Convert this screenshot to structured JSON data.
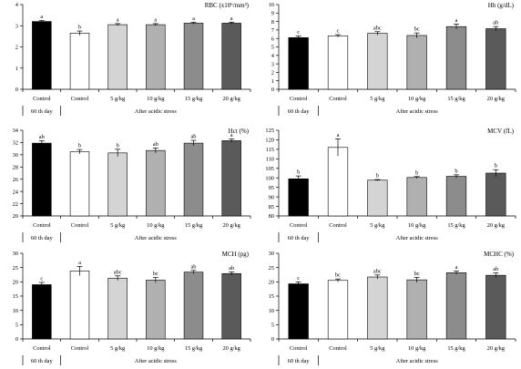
{
  "figure": {
    "group_labels": {
      "baseline": "60 th day",
      "stress": "After acidic stress"
    }
  },
  "chart_data": [
    {
      "type": "bar",
      "title": "RBC (x10⁶/mm³)",
      "categories": [
        "Control",
        "Control",
        "5 g/kg",
        "10 g/kg",
        "15 g/kg",
        "20 g/kg"
      ],
      "values": [
        3.2,
        2.65,
        3.05,
        3.05,
        3.12,
        3.12
      ],
      "errors": [
        0.05,
        0.1,
        0.05,
        0.05,
        0.05,
        0.05
      ],
      "significance": [
        "a",
        "b",
        "a",
        "a",
        "a",
        "a"
      ],
      "ylim": [
        0,
        4
      ],
      "yticks": [
        0,
        1,
        2,
        3,
        4
      ],
      "colors": [
        "#000000",
        "#ffffff",
        "#d4d4d4",
        "#b0b0b0",
        "#8c8c8c",
        "#5a5a5a"
      ]
    },
    {
      "type": "bar",
      "title": "Hb (g/dL)",
      "categories": [
        "Control",
        "Control",
        "5 g/kg",
        "10 g/kg",
        "15 g/kg",
        "20 g/kg"
      ],
      "values": [
        6.1,
        6.3,
        6.6,
        6.35,
        7.4,
        7.15
      ],
      "errors": [
        0.2,
        0.15,
        0.2,
        0.3,
        0.3,
        0.25
      ],
      "significance": [
        "c",
        "c",
        "abc",
        "bc",
        "a",
        "ab"
      ],
      "ylim": [
        0,
        10
      ],
      "yticks": [
        0,
        1,
        2,
        3,
        4,
        5,
        6,
        7,
        8,
        9,
        10
      ],
      "colors": [
        "#000000",
        "#ffffff",
        "#d4d4d4",
        "#b0b0b0",
        "#8c8c8c",
        "#5a5a5a"
      ]
    },
    {
      "type": "bar",
      "title": "Hct (%)",
      "categories": [
        "Control",
        "Control",
        "5 g/kg",
        "10 g/kg",
        "15 g/kg",
        "20 g/kg"
      ],
      "values": [
        31.9,
        30.5,
        30.3,
        30.7,
        31.9,
        32.3
      ],
      "errors": [
        0.4,
        0.35,
        0.6,
        0.4,
        0.45,
        0.3
      ],
      "significance": [
        "ab",
        "b",
        "b",
        "ab",
        "ab",
        "a"
      ],
      "ylim": [
        20,
        34
      ],
      "yticks": [
        20,
        22,
        24,
        26,
        28,
        30,
        32,
        34
      ],
      "colors": [
        "#000000",
        "#ffffff",
        "#d4d4d4",
        "#b0b0b0",
        "#8c8c8c",
        "#5a5a5a"
      ]
    },
    {
      "type": "bar",
      "title": "MCV (fL)",
      "categories": [
        "Control",
        "Control",
        "5 g/kg",
        "10 g/kg",
        "15 g/kg",
        "20 g/kg"
      ],
      "values": [
        99.5,
        116,
        98.8,
        100.2,
        100.8,
        102.5
      ],
      "errors": [
        1.5,
        4.5,
        0.3,
        0.5,
        0.8,
        1.8
      ],
      "significance": [
        "b",
        "a",
        "b",
        "b",
        "b",
        "b"
      ],
      "ylim": [
        80,
        125
      ],
      "yticks": [
        80,
        85,
        90,
        95,
        100,
        105,
        110,
        115,
        120,
        125
      ],
      "colors": [
        "#000000",
        "#ffffff",
        "#d4d4d4",
        "#b0b0b0",
        "#8c8c8c",
        "#5a5a5a"
      ]
    },
    {
      "type": "bar",
      "title": "MCH (pg)",
      "categories": [
        "Control",
        "Control",
        "5 g/kg",
        "10 g/kg",
        "15 g/kg",
        "20 g/kg"
      ],
      "values": [
        19,
        23.8,
        21.3,
        20.6,
        23.4,
        22.9
      ],
      "errors": [
        0.8,
        1.6,
        0.8,
        0.9,
        0.6,
        0.6
      ],
      "significance": [
        "c",
        "a",
        "abc",
        "bc",
        "ab",
        "ab"
      ],
      "ylim": [
        0,
        30
      ],
      "yticks": [
        0,
        5,
        10,
        15,
        20,
        25,
        30
      ],
      "colors": [
        "#000000",
        "#ffffff",
        "#d4d4d4",
        "#b0b0b0",
        "#8c8c8c",
        "#5a5a5a"
      ]
    },
    {
      "type": "bar",
      "title": "MCHC (%)",
      "categories": [
        "Control",
        "Control",
        "5 g/kg",
        "10 g/kg",
        "15 g/kg",
        "20 g/kg"
      ],
      "values": [
        19.3,
        20.5,
        21.7,
        20.7,
        23.2,
        22.3
      ],
      "errors": [
        0.7,
        0.5,
        0.7,
        0.9,
        0.6,
        0.8
      ],
      "significance": [
        "c",
        "bc",
        "abc",
        "bc",
        "a",
        "ab"
      ],
      "ylim": [
        0,
        30
      ],
      "yticks": [
        0,
        5,
        10,
        15,
        20,
        25,
        30
      ],
      "colors": [
        "#000000",
        "#ffffff",
        "#d4d4d4",
        "#b0b0b0",
        "#8c8c8c",
        "#5a5a5a"
      ]
    }
  ]
}
